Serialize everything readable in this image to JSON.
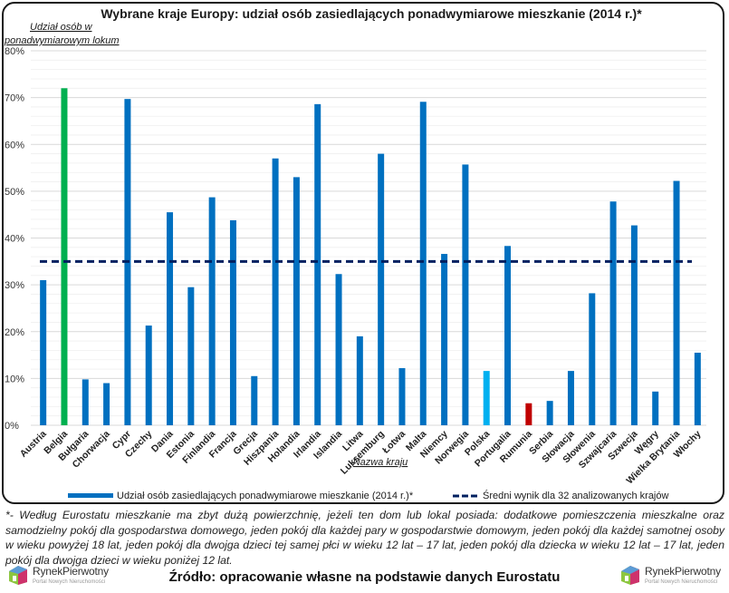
{
  "chart_data": {
    "type": "bar",
    "title": "Wybrane kraje Europy: udział osób zasiedlających ponadwymiarowe mieszkanie (2014 r.)*",
    "ylabel": "Udział osób w ponadwymiarowym lokum",
    "ylabel_lines": [
      "Udział osób w",
      "ponadwymiarowym lokum"
    ],
    "xlabel": "Nazwa kraju",
    "ylim": [
      0,
      80
    ],
    "yticks": [
      "0%",
      "10%",
      "20%",
      "30%",
      "40%",
      "50%",
      "60%",
      "70%",
      "80%"
    ],
    "ytick_values": [
      0,
      10,
      20,
      30,
      40,
      50,
      60,
      70,
      80
    ],
    "grid": true,
    "categories": [
      "Austria",
      "Belgia",
      "Bułgaria",
      "Chorwacja",
      "Cypr",
      "Czechy",
      "Dania",
      "Estonia",
      "Finlandia",
      "Francja",
      "Grecja",
      "Hiszpania",
      "Holandia",
      "Irlandia",
      "Islandia",
      "Litwa",
      "Luksemburg",
      "Łotwa",
      "Malta",
      "Niemcy",
      "Norwegia",
      "Polska",
      "Portugalia",
      "Rumunia",
      "Serbia",
      "Słowacja",
      "Słowenia",
      "Szwajcaria",
      "Szwecja",
      "Węgry",
      "Wielka Brytania",
      "Włochy"
    ],
    "series": [
      {
        "name": "Udział osób zasiedlających ponadwymiarowe mieszkanie (2014 r.)*",
        "values": [
          31.0,
          72.0,
          9.8,
          9.0,
          69.7,
          21.3,
          45.5,
          29.5,
          48.7,
          43.8,
          10.5,
          57.0,
          53.0,
          68.6,
          32.3,
          19.0,
          58.0,
          12.2,
          69.1,
          36.6,
          55.7,
          11.6,
          38.3,
          4.7,
          5.2,
          11.6,
          28.2,
          47.8,
          42.7,
          7.2,
          52.2,
          15.5
        ],
        "color": "#0070c0"
      }
    ],
    "highlights": {
      "Belgia": "#00b050",
      "Polska": "#00b0f0",
      "Rumunia": "#c00000"
    },
    "reference_line": {
      "name": "Średni wynik dla 32 analizowanych krajów",
      "value": 35,
      "color": "#002060",
      "style": "dashed"
    },
    "legend": {
      "placement": "bottom",
      "entries": [
        "Udział osób zasiedlających ponadwymiarowe mieszkanie (2014 r.)*",
        "Średni wynik dla 32 analizowanych krajów"
      ]
    }
  },
  "footnote": "*- Według Eurostatu mieszkanie ma zbyt dużą powierzchnię, jeżeli ten dom lub lokal posiada: dodatkowe pomieszczenia mieszkalne oraz samodzielny pokój dla gospodarstwa domowego, jeden pokój dla każdej pary w gospodarstwie domowym, jeden pokój dla każdej samotnej osoby w wieku powyżej 18 lat, jeden pokój dla dwojga dzieci tej samej płci w wieku 12 lat – 17 lat, jeden pokój dla dziecka w wieku 12 lat – 17 lat, jeden pokój dla dwojga dzieci w wieku poniżej 12 lat.",
  "source": "Źródło: opracowanie własne na podstawie danych Eurostatu",
  "logo": {
    "name": "RynekPierwotny",
    "tagline": "Portal Nowych Nieruchomości",
    "icon": "house-logo-icon"
  }
}
